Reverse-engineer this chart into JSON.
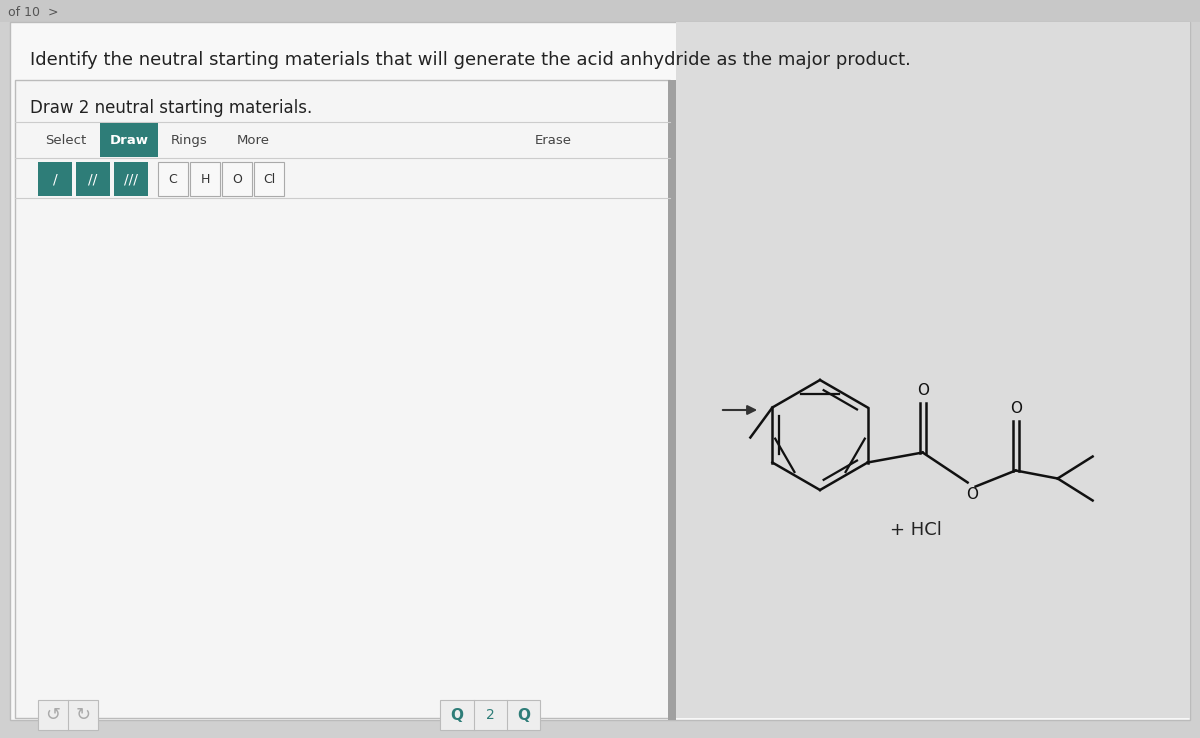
{
  "bg_outer": "#d0d0d0",
  "bg_topbar": "#c8c8c8",
  "bg_card": "#f8f8f8",
  "bg_draw_panel": "#f0f0f0",
  "bg_right": "#dcdcdc",
  "panel_border": "#bbbbbb",
  "header_text": "Identify the neutral starting materials that will generate the acid anhydride as the major product.",
  "header_color": "#222222",
  "header_fontsize": 13.0,
  "draw_label": "Draw 2 neutral starting materials.",
  "draw_label_fontsize": 12,
  "toolbar_items": [
    "Select",
    "Draw",
    "Rings",
    "More",
    "Erase"
  ],
  "toolbar_active": "Draw",
  "toolbar_active_bg": "#2e7d78",
  "toolbar_active_fg": "#ffffff",
  "toolbar_inactive_fg": "#444444",
  "bond_btn_bg": "#2e7d78",
  "bond_btn_fg": "#ffffff",
  "atom_btn_bg": "#f8f8f8",
  "atom_btn_border": "#aaaaaa",
  "atom_btn_fg": "#333333",
  "atom_buttons": [
    "C",
    "H",
    "O",
    "Cl"
  ],
  "divider_color": "#cccccc",
  "divider_bar_color": "#aaaaaa",
  "arrow_color": "#333333",
  "mol_color": "#111111",
  "product_label": "+ HCl",
  "product_label_color": "#222222",
  "zoom_btn_color": "#2e7d78",
  "footer_btn_color": "#aaaaaa",
  "page_counter": "of 10  >",
  "page_counter_color": "#555555"
}
